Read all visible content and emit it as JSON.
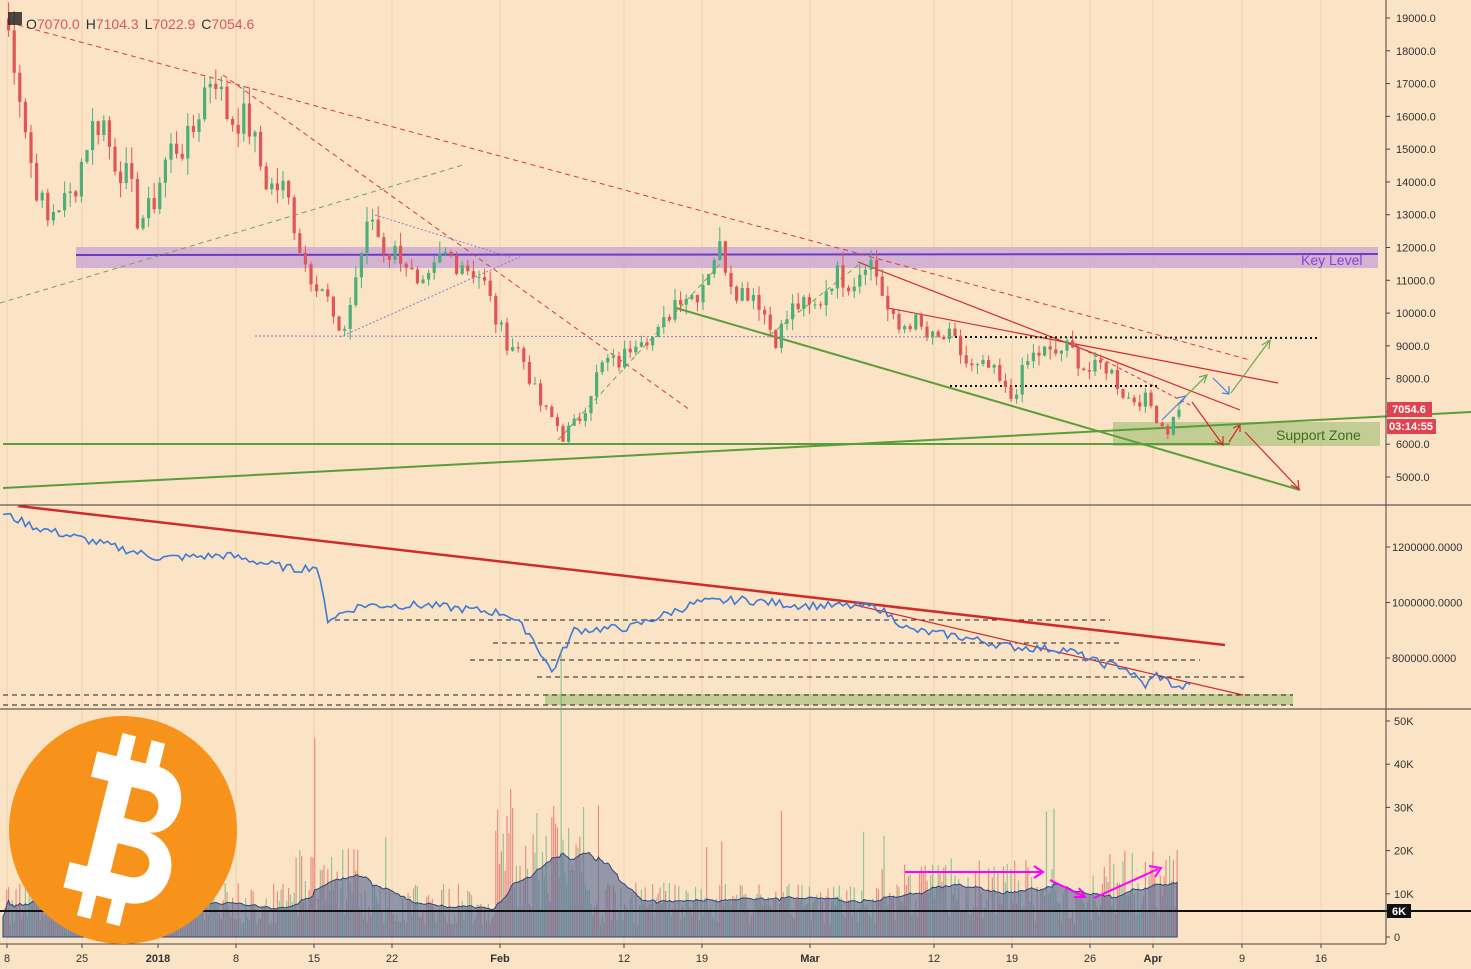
{
  "ohlc": {
    "o_label": "O",
    "o": "7070.0",
    "h_label": "H",
    "h": "7104.3",
    "l_label": "L",
    "l": "7022.9",
    "c_label": "C",
    "c": "7054.6"
  },
  "badges": {
    "last_price": "7054.6",
    "countdown": "03:14:55",
    "volume_level": "6K"
  },
  "annotations": {
    "key_level": "Key Level",
    "support_zone": "Support Zone"
  },
  "colors": {
    "background": "#fbe3c5",
    "up": "#4caf7a",
    "down": "#e05555",
    "key_level": "#7e4bd6",
    "support": "#5a9e3a",
    "obv": "#3f7ad6",
    "trend": "#d12a2a",
    "magenta": "#ff00ff",
    "logo": "#f7931a"
  },
  "icons": {
    "logo": "bitcoin-logo-icon"
  },
  "chart_data": [
    {
      "type": "candlestick",
      "title": "",
      "ylim": [
        4500,
        19300
      ],
      "y_ticks": [
        "19000.0",
        "18000.0",
        "17000.0",
        "16000.0",
        "15000.0",
        "14000.0",
        "13000.0",
        "12000.0",
        "11000.0",
        "10000.0",
        "9000.0",
        "8000.0",
        "7000.0",
        "6000.0",
        "5000.0"
      ],
      "x_ticks": [
        "8",
        "25",
        "2018",
        "8",
        "15",
        "22",
        "Feb",
        "12",
        "19",
        "Mar",
        "12",
        "19",
        "26",
        "Apr",
        "9",
        "16"
      ],
      "price_path": [
        {
          "x": "Dec 18",
          "y": 19000
        },
        {
          "x": "Dec 22",
          "y": 12500
        },
        {
          "x": "Dec 27",
          "y": 16000
        },
        {
          "x": "Dec 30",
          "y": 12800
        },
        {
          "x": "Jan 6",
          "y": 17100
        },
        {
          "x": "Jan 12",
          "y": 13500
        },
        {
          "x": "Jan 17",
          "y": 9300
        },
        {
          "x": "Jan 20",
          "y": 12800
        },
        {
          "x": "Jan 24",
          "y": 10800
        },
        {
          "x": "Jan 28",
          "y": 11900
        },
        {
          "x": "Feb 6",
          "y": 6100
        },
        {
          "x": "Feb 10",
          "y": 8500
        },
        {
          "x": "Feb 14",
          "y": 9400
        },
        {
          "x": "Feb 20",
          "y": 11700
        },
        {
          "x": "Feb 25",
          "y": 9500
        },
        {
          "x": "Mar 5",
          "y": 11600
        },
        {
          "x": "Mar 8",
          "y": 9600
        },
        {
          "x": "Mar 11",
          "y": 9400
        },
        {
          "x": "Mar 18",
          "y": 7600
        },
        {
          "x": "Mar 21",
          "y": 9000
        },
        {
          "x": "Mar 26",
          "y": 8300
        },
        {
          "x": "Apr 1",
          "y": 6600
        },
        {
          "x": "Apr 2",
          "y": 7054.6
        }
      ],
      "last_price": 7054.6
    },
    {
      "type": "line",
      "title": "",
      "ylim": [
        640000,
        1350000
      ],
      "y_ticks": [
        "1200000.0000",
        "1000000.0000",
        "800000.0000"
      ]
    },
    {
      "type": "bar",
      "title": "",
      "ylim": [
        0,
        52000
      ],
      "y_ticks": [
        "50K",
        "40K",
        "30K",
        "20K",
        "10K",
        "0"
      ],
      "level": 6000
    }
  ]
}
